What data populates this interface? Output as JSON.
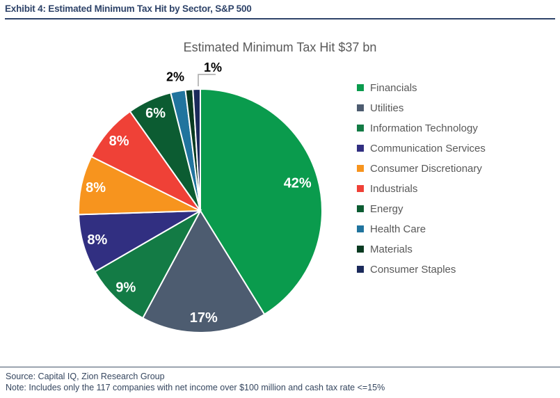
{
  "exhibit": {
    "title": "Exhibit 4: Estimated Minimum Tax Hit by Sector, S&P 500"
  },
  "chart_data": {
    "type": "pie",
    "title": "Estimated Minimum Tax Hit $37 bn",
    "unit": "percent",
    "legend_position": "right",
    "start_angle_deg": 0,
    "direction": "clockwise",
    "colors_note": "slice fill colors as hex",
    "slices": [
      {
        "label": "Financials",
        "value": 42,
        "display": "42%",
        "color": "#0A9B4D",
        "label_placement": "inside"
      },
      {
        "label": "Utilities",
        "value": 17,
        "display": "17%",
        "color": "#4D5C70",
        "label_placement": "inside"
      },
      {
        "label": "Information Technology",
        "value": 9,
        "display": "9%",
        "color": "#137B45",
        "label_placement": "inside"
      },
      {
        "label": "Communication Services",
        "value": 8,
        "display": "8%",
        "color": "#312F81",
        "label_placement": "inside"
      },
      {
        "label": "Consumer Discretionary",
        "value": 8,
        "display": "8%",
        "color": "#F7941E",
        "label_placement": "inside"
      },
      {
        "label": "Industrials",
        "value": 8,
        "display": "8%",
        "color": "#EF4137",
        "label_placement": "inside"
      },
      {
        "label": "Energy",
        "value": 6,
        "display": "6%",
        "color": "#0C5C32",
        "label_placement": "inside"
      },
      {
        "label": "Health Care",
        "value": 2,
        "display": "2%",
        "color": "#21749E",
        "label_placement": "outside"
      },
      {
        "label": "Materials",
        "value": 1,
        "display": "1%",
        "color": "#093A21",
        "label_placement": "leader"
      },
      {
        "label": "Consumer Staples",
        "value": 1,
        "display": "",
        "color": "#1B2A5B",
        "label_placement": "none"
      }
    ],
    "label_colors": {
      "inside": "#FFFFFF",
      "outside": "#000000"
    },
    "leader_line_color": "#A6A6A6"
  },
  "footer": {
    "source": "Source: Capital IQ, Zion Research Group",
    "note": "Note: Includes only the 117 companies with net income over $100 million and cash tax rate <=15%"
  }
}
